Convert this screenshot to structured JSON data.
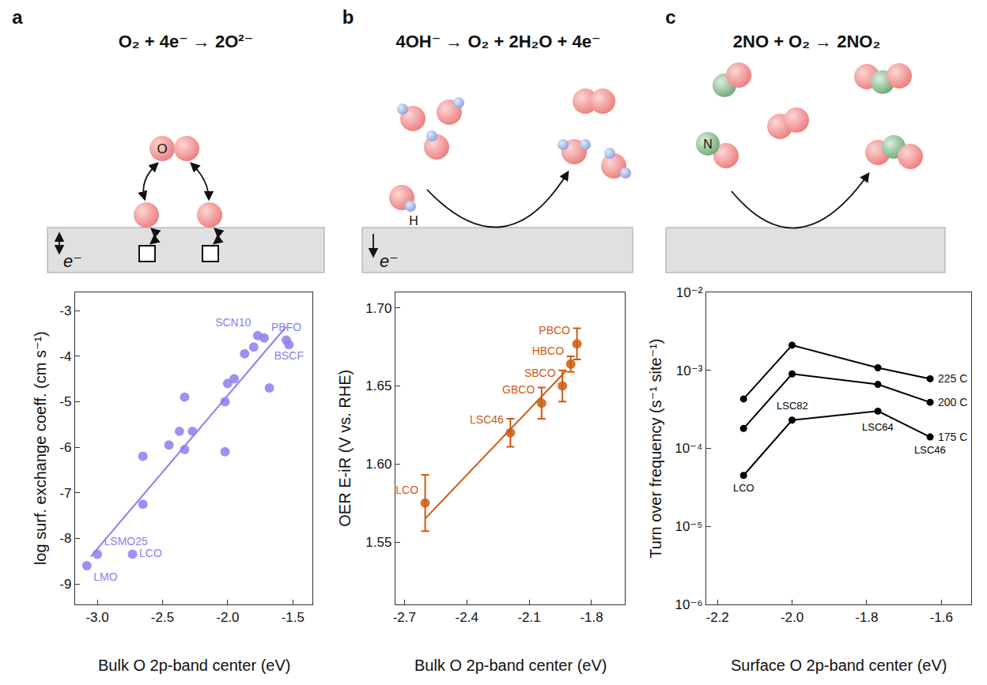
{
  "schematics": [
    {
      "letter": "a",
      "reaction": "O₂ + 4e⁻ → 2O²⁻",
      "atom_label": "O",
      "electron_label": "e⁻"
    },
    {
      "letter": "b",
      "reaction": "4OH⁻ → O₂ + 2H₂O + 4e⁻",
      "atom_label": "H",
      "electron_label": "e⁻"
    },
    {
      "letter": "c",
      "reaction": "2NO + O₂ → 2NO₂",
      "atom_label": "N"
    }
  ],
  "chart_data": [
    {
      "type": "scatter",
      "x_label": "Bulk O 2p-band center (eV)",
      "y_label": "log surf. exchange coeff. (cm s⁻¹)",
      "xlim": [
        -3.17,
        -1.35
      ],
      "ylim": [
        -9.45,
        -2.6
      ],
      "xticks": [
        {
          "value": -3,
          "label": "-3.0"
        },
        -2.5,
        {
          "value": -2,
          "label": "-2.0"
        },
        -1.5
      ],
      "yticks": [
        -9,
        -8,
        -7,
        -6,
        -5,
        -4,
        -3
      ],
      "grid": false,
      "color": "#8b80ee",
      "series": [
        {
          "type": "scatter",
          "marker": "circle",
          "x": [
            -3.08,
            -3.0,
            -2.73,
            -2.65,
            -2.65,
            -2.45,
            -2.37,
            -2.33,
            -2.33,
            -2.27,
            -2.02,
            -2.02,
            -2.0,
            -1.95,
            -1.87,
            -1.8,
            -1.77,
            -1.72,
            -1.68,
            -1.55,
            -1.53
          ],
          "values": [
            -8.6,
            -8.35,
            -8.35,
            -7.25,
            -6.2,
            -5.95,
            -5.65,
            -6.05,
            -4.9,
            -5.65,
            -6.1,
            -5.0,
            -4.6,
            -4.5,
            -3.95,
            -3.8,
            -3.55,
            -3.6,
            -4.7,
            -3.65,
            -3.75
          ],
          "labels": [
            "LMO",
            "LSMO25",
            "LCO",
            null,
            null,
            null,
            null,
            null,
            null,
            null,
            null,
            null,
            null,
            null,
            null,
            null,
            "SCN10",
            null,
            null,
            "PBFO",
            "BSCF"
          ]
        },
        {
          "type": "line",
          "line_style": "solid",
          "x": [
            -3.05,
            -1.55
          ],
          "values": [
            -8.4,
            -3.35
          ]
        }
      ]
    },
    {
      "type": "scatter",
      "x_label": "Bulk O 2p-band center (eV)",
      "y_label": "OER E-iR (V vs. RHE)",
      "xlim": [
        -2.743,
        -1.64
      ],
      "ylim": [
        1.51,
        1.71
      ],
      "xticks": [
        -2.7,
        -2.4,
        -2.1,
        -1.8
      ],
      "yticks": [
        1.55,
        {
          "value": 1.6,
          "label": "1.60"
        },
        1.65,
        {
          "value": 1.7,
          "label": "1.70"
        }
      ],
      "grid": false,
      "color": "#cc5a12",
      "series": [
        {
          "type": "scatter",
          "marker": "circle",
          "x": [
            -2.6,
            -2.19,
            -2.04,
            -1.94,
            -1.9,
            -1.87
          ],
          "values": [
            1.575,
            1.62,
            1.639,
            1.65,
            1.664,
            1.677
          ],
          "errors": [
            0.018,
            0.009,
            0.01,
            0.01,
            0.005,
            0.01
          ],
          "labels": [
            "LCO",
            "LSC46",
            "GBCO",
            "SBCO",
            "HBCO",
            "PBCO"
          ]
        },
        {
          "type": "line",
          "line_style": "solid",
          "x": [
            -2.6,
            -1.92
          ],
          "values": [
            1.565,
            1.66
          ]
        }
      ]
    },
    {
      "type": "line",
      "x_label": "Surface O 2p-band center (eV)",
      "y_label": "Turn over frequency (s⁻¹ site⁻¹)",
      "log": "y",
      "xlim": [
        -2.23,
        -1.52
      ],
      "ylim": [
        1e-06,
        0.01
      ],
      "xticks": [
        -2.2,
        {
          "value": -2,
          "label": "-2.0"
        },
        -1.8,
        -1.6
      ],
      "yticks": [
        {
          "value": 1e-06,
          "label": "10⁻⁶"
        },
        {
          "value": 1e-05,
          "label": "10⁻⁵"
        },
        {
          "value": 0.0001,
          "label": "10⁻⁴"
        },
        {
          "value": 0.001,
          "label": "10⁻³"
        },
        {
          "value": 0.01,
          "label": "10⁻²"
        }
      ],
      "grid": false,
      "color": "#000000",
      "marker": "circle",
      "x": [
        -2.13,
        -2.0,
        -1.77,
        -1.63
      ],
      "labels": [
        "LCO",
        "LSC82",
        "LSC64",
        "LSC46"
      ],
      "series": [
        {
          "name": "225 C",
          "values": [
            0.00043,
            0.0021,
            0.00108,
            0.00078
          ]
        },
        {
          "name": "200 C",
          "values": [
            0.00018,
            0.0009,
            0.00066,
            0.00039
          ]
        },
        {
          "name": "175 C",
          "values": [
            4.5e-05,
            0.00023,
            0.0003,
            0.00014
          ]
        }
      ]
    }
  ]
}
